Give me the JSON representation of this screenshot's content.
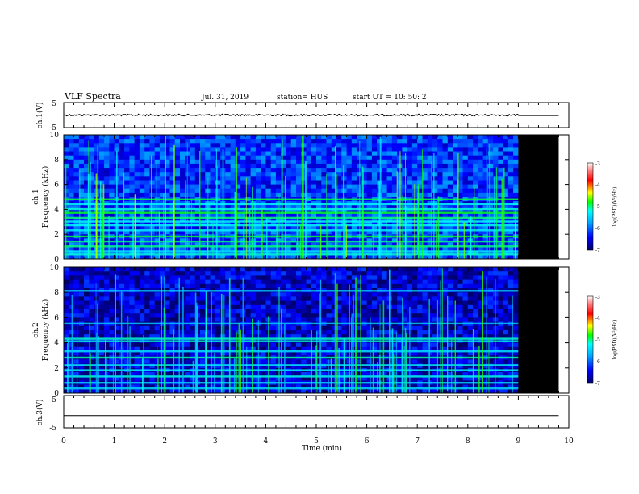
{
  "header": {
    "title": "VLF Spectra",
    "date": "Jul. 31, 2019",
    "station": "station= HUS",
    "start": "start  UT =  10: 50: 2"
  },
  "panels": {
    "ch1v_label": "ch.1(V)",
    "ch1_label": "ch.1",
    "ch1_freq_label": "Frequency (kHz)",
    "ch2_label": "ch.2",
    "ch2_freq_label": "Frequency (kHz)",
    "ch3v_label": "ch.3(V)",
    "xlabel": "Time (min)",
    "colorbar_label": "log(PSD)(V²/Hz)"
  },
  "chart_data": [
    {
      "type": "line",
      "name": "ch.1(V) waveform",
      "ylabel": "ch.1(V)",
      "ylim": [
        -5,
        5
      ],
      "yticks": [
        "5",
        "-5"
      ],
      "xlim": [
        0,
        10
      ],
      "x": [
        0,
        9,
        9,
        9.8
      ],
      "y": [
        0,
        0,
        -0.2,
        -0.2
      ]
    },
    {
      "type": "heatmap",
      "name": "ch.1 spectrogram",
      "ylabel": "Frequency (kHz)",
      "xlim": [
        0,
        10
      ],
      "ylim": [
        0,
        10
      ],
      "yticks": [
        "0",
        "2",
        "4",
        "6",
        "8",
        "10"
      ],
      "data_end_min": 9.0,
      "panel_end_min": 9.8,
      "background_log_psd": -6.2,
      "band_freqs_khz": [
        0.35,
        0.6,
        1.0,
        1.4,
        1.8,
        2.3,
        2.7,
        3.0,
        3.3,
        3.7,
        4.0,
        4.4,
        4.8
      ],
      "colorbar": {
        "label": "log(PSD)(V²/Hz)",
        "range": [
          -7,
          -3
        ],
        "ticks": [
          "-3",
          "-4",
          "-5",
          "-6",
          "-7"
        ]
      }
    },
    {
      "type": "heatmap",
      "name": "ch.2 spectrogram",
      "ylabel": "Frequency (kHz)",
      "xlim": [
        0,
        10
      ],
      "ylim": [
        0,
        10
      ],
      "yticks": [
        "0",
        "2",
        "4",
        "6",
        "8",
        "10"
      ],
      "data_end_min": 9.0,
      "panel_end_min": 9.8,
      "background_log_psd": -6.6,
      "band_freqs_khz": [
        0.35,
        0.8,
        1.3,
        1.8,
        2.2,
        2.8,
        3.3,
        4.1,
        4.3,
        5.5,
        8.1
      ],
      "colorbar": {
        "label": "log(PSD)(V²/Hz)",
        "range": [
          -7,
          -3
        ],
        "ticks": [
          "-3",
          "-4",
          "-5",
          "-6",
          "-7"
        ]
      }
    },
    {
      "type": "line",
      "name": "ch.3(V) waveform",
      "ylabel": "ch.3(V)",
      "ylim": [
        -5,
        5
      ],
      "yticks": [
        "5",
        "-5"
      ],
      "xlim": [
        0,
        10
      ],
      "x": [
        0,
        9.8
      ],
      "y": [
        -1.2,
        -1.2
      ]
    }
  ],
  "x_axis": {
    "label": "Time (min)",
    "ticks": [
      "0",
      "1",
      "2",
      "3",
      "4",
      "5",
      "6",
      "7",
      "8",
      "9",
      "10"
    ]
  }
}
